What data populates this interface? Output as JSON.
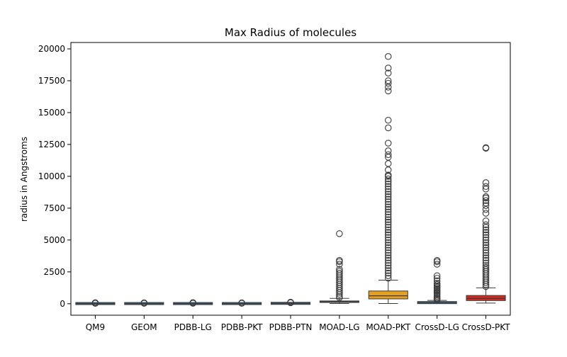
{
  "chart_data": {
    "type": "box",
    "title": "Max Radius of molecules",
    "xlabel": "",
    "ylabel": "radius in Angstroms",
    "ylim": [
      -900,
      20500
    ],
    "yticks": [
      0,
      2500,
      5000,
      7500,
      10000,
      12500,
      15000,
      17500,
      20000
    ],
    "ytick_labels": [
      "0",
      "2500",
      "5000",
      "7500",
      "10000",
      "12500",
      "15000",
      "17500",
      "20000"
    ],
    "categories": [
      "QM9",
      "GEOM",
      "PDBB-LG",
      "PDBB-PKT",
      "PDBB-PTN",
      "MOAD-LG",
      "MOAD-PKT",
      "CrossD-LG",
      "CrossD-PKT"
    ],
    "boxes": [
      {
        "name": "QM9",
        "color": "#3a6e9f",
        "q1": 10,
        "median": 15,
        "q3": 20,
        "whislo": 5,
        "whishi": 30,
        "outliers": [
          35,
          45,
          55,
          65,
          80
        ]
      },
      {
        "name": "GEOM",
        "color": "#3a6e9f",
        "q1": 10,
        "median": 15,
        "q3": 22,
        "whislo": 5,
        "whishi": 35,
        "outliers": [
          40,
          50,
          60,
          75
        ]
      },
      {
        "name": "PDBB-LG",
        "color": "#3a6e9f",
        "q1": 10,
        "median": 15,
        "q3": 22,
        "whislo": 5,
        "whishi": 35,
        "outliers": [
          40,
          55,
          70,
          90
        ]
      },
      {
        "name": "PDBB-PKT",
        "color": "#3a6e9f",
        "q1": 10,
        "median": 15,
        "q3": 22,
        "whislo": 5,
        "whishi": 35,
        "outliers": [
          40,
          55,
          70
        ]
      },
      {
        "name": "PDBB-PTN",
        "color": "#3a6e9f",
        "q1": 20,
        "median": 30,
        "q3": 45,
        "whislo": 10,
        "whishi": 70,
        "outliers": [
          80,
          100,
          120
        ]
      },
      {
        "name": "MOAD-LG",
        "color": "#3a6e9f",
        "q1": 100,
        "median": 150,
        "q3": 220,
        "whislo": 20,
        "whishi": 420,
        "outliers": [
          480,
          600,
          750,
          900,
          1050,
          1200,
          1350,
          1500,
          1650,
          1800,
          1950,
          2100,
          2250,
          2400,
          2550,
          2700,
          3100,
          3300,
          3400,
          5500
        ]
      },
      {
        "name": "MOAD-PKT",
        "color": "#e5a020",
        "q1": 380,
        "median": 620,
        "q3": 1000,
        "whislo": 20,
        "whishi": 1850,
        "outliers": [
          2000,
          2200,
          2400,
          2600,
          2800,
          3000,
          3200,
          3400,
          3600,
          3800,
          4000,
          4200,
          4400,
          4600,
          4800,
          5000,
          5200,
          5400,
          5600,
          5800,
          6000,
          6200,
          6400,
          6600,
          6800,
          7000,
          7200,
          7400,
          7600,
          7800,
          8000,
          8200,
          8400,
          8600,
          8800,
          9000,
          9200,
          9400,
          9600,
          9800,
          10000,
          10100,
          10500,
          11000,
          11500,
          11700,
          12000,
          12600,
          13800,
          14400,
          16700,
          17000,
          17300,
          17500,
          18100,
          18500,
          19400
        ]
      },
      {
        "name": "CrossD-LG",
        "color": "#3a6e9f",
        "q1": 60,
        "median": 90,
        "q3": 130,
        "whislo": 20,
        "whishi": 260,
        "outliers": [
          300,
          400,
          500,
          600,
          700,
          800,
          900,
          1000,
          1100,
          1200,
          1300,
          1400,
          1500,
          1600,
          1800,
          2000,
          2200,
          3100,
          3300,
          3400
        ]
      },
      {
        "name": "CrossD-PKT",
        "color": "#d62a20",
        "q1": 250,
        "median": 420,
        "q3": 650,
        "whislo": 50,
        "whishi": 1250,
        "outliers": [
          1350,
          1500,
          1650,
          1800,
          1950,
          2100,
          2250,
          2400,
          2550,
          2700,
          2850,
          3000,
          3200,
          3400,
          3600,
          3800,
          4000,
          4200,
          4400,
          4600,
          4800,
          5000,
          5200,
          5400,
          5600,
          5800,
          6000,
          6200,
          6500,
          7100,
          7400,
          7700,
          7900,
          8100,
          8300,
          8400,
          9000,
          9200,
          9500,
          12200,
          12250
        ]
      }
    ],
    "grid": false,
    "legend": "none"
  }
}
